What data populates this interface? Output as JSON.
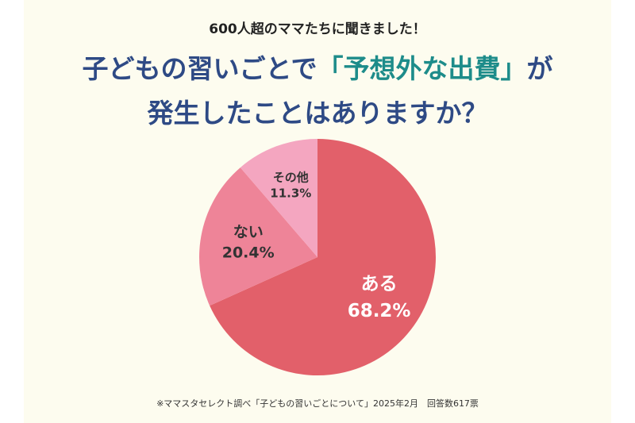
{
  "header": {
    "subtitle": "600人超のママたちに聞きました！",
    "title_line1_pre": "子どもの習いごとで",
    "title_line1_highlight": "「予想外な出費」",
    "title_line1_post": "が",
    "title_line2": "発生したことはありますか？"
  },
  "colors": {
    "background": "#fdfcef",
    "title": "#2e4a85",
    "highlight": "#1d8c8a",
    "slice_aru": "#e2606a",
    "slice_nai": "#ee8498",
    "slice_other": "#f4a6c0"
  },
  "chart_data": {
    "type": "pie",
    "title": "",
    "slices": [
      {
        "label": "ある",
        "value": 68.2,
        "value_label": "68.2%",
        "color": "#e2606a",
        "label_color": "#ffffff"
      },
      {
        "label": "ない",
        "value": 20.4,
        "value_label": "20.4%",
        "color": "#ee8498",
        "label_color": "#333333"
      },
      {
        "label": "その他",
        "value": 11.3,
        "value_label": "11.3%",
        "color": "#f4a6c0",
        "label_color": "#333333"
      }
    ],
    "start": "12 o'clock",
    "direction": "clockwise"
  },
  "footnote": "※ママスタセレクト調べ「子どもの習いごとについて」2025年2月　回答数617票"
}
